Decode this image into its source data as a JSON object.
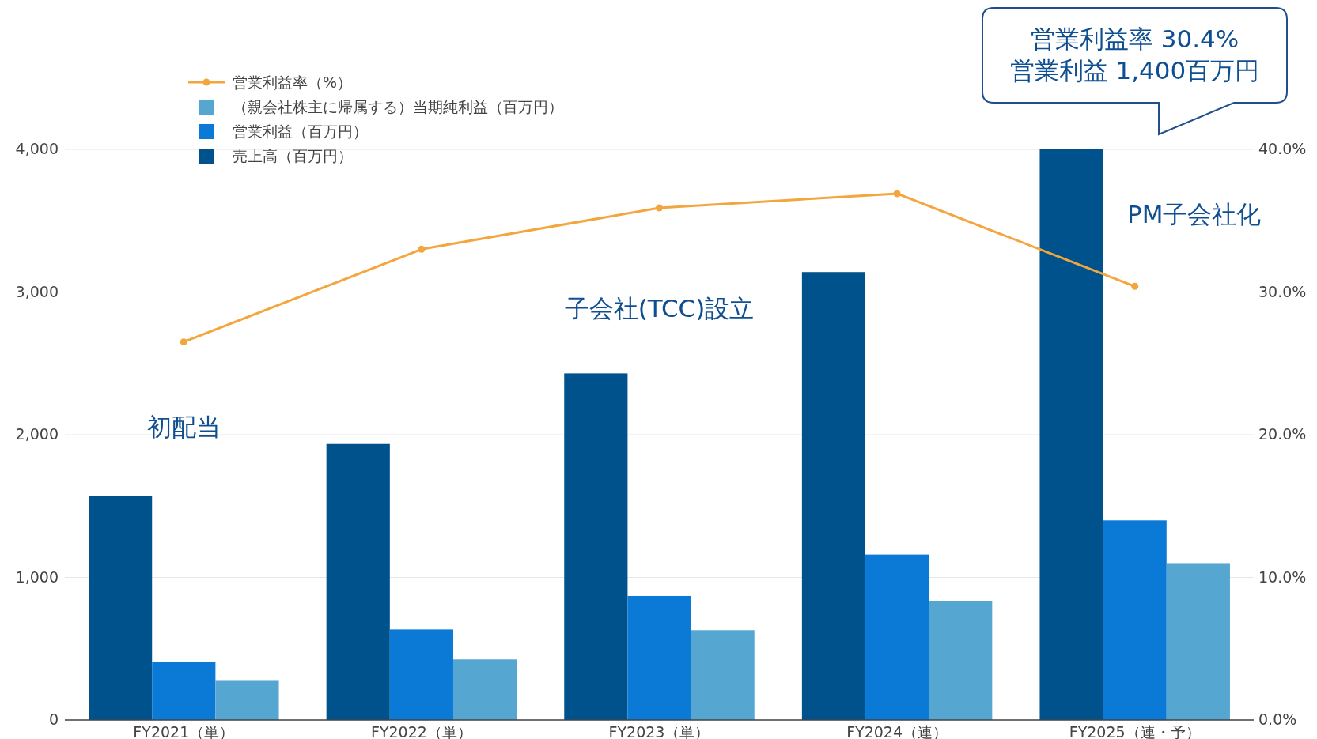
{
  "chart_data": {
    "type": "bar",
    "categories": [
      "FY2021（単）",
      "FY2022（単）",
      "FY2023（単）",
      "FY2024（連）",
      "FY2025（連・予）"
    ],
    "series": [
      {
        "name": "売上高（百万円）",
        "color": "#00528c",
        "values": [
          1570,
          1935,
          2430,
          3140,
          4000
        ]
      },
      {
        "name": "営業利益（百万円）",
        "color": "#0a7ad6",
        "values": [
          410,
          635,
          870,
          1160,
          1400
        ]
      },
      {
        "name": "（親会社株主に帰属する）当期純利益（百万円）",
        "color": "#56a6d2",
        "values": [
          280,
          425,
          630,
          835,
          1100
        ]
      },
      {
        "name": "営業利益率（%）",
        "type": "line",
        "axis": "y2",
        "color": "#f4a63e",
        "marker": "circle",
        "values": [
          26.5,
          33.0,
          35.9,
          36.9,
          30.4
        ]
      }
    ],
    "ylim": [
      0,
      4000
    ],
    "yticks": [
      0,
      {
        "value": 1000,
        "label": "1,000"
      },
      {
        "value": 2000,
        "label": "2,000"
      },
      {
        "value": 3000,
        "label": "3,000"
      },
      {
        "value": 4000,
        "label": "4,000"
      }
    ],
    "y2lim": [
      0,
      40
    ],
    "y2ticks": [
      {
        "value": 0,
        "label": "0.0%"
      },
      {
        "value": 10,
        "label": "10.0%"
      },
      {
        "value": 20,
        "label": "20.0%"
      },
      {
        "value": 30,
        "label": "30.0%"
      },
      {
        "value": 40,
        "label": "40.0%"
      }
    ],
    "grid": "y",
    "legend": "top left",
    "annotations": [
      "営業利益率 30.4%\n営業利益 1,400百万円",
      "初配当",
      "子会社(TCC)設立",
      "PM子会社化"
    ]
  }
}
